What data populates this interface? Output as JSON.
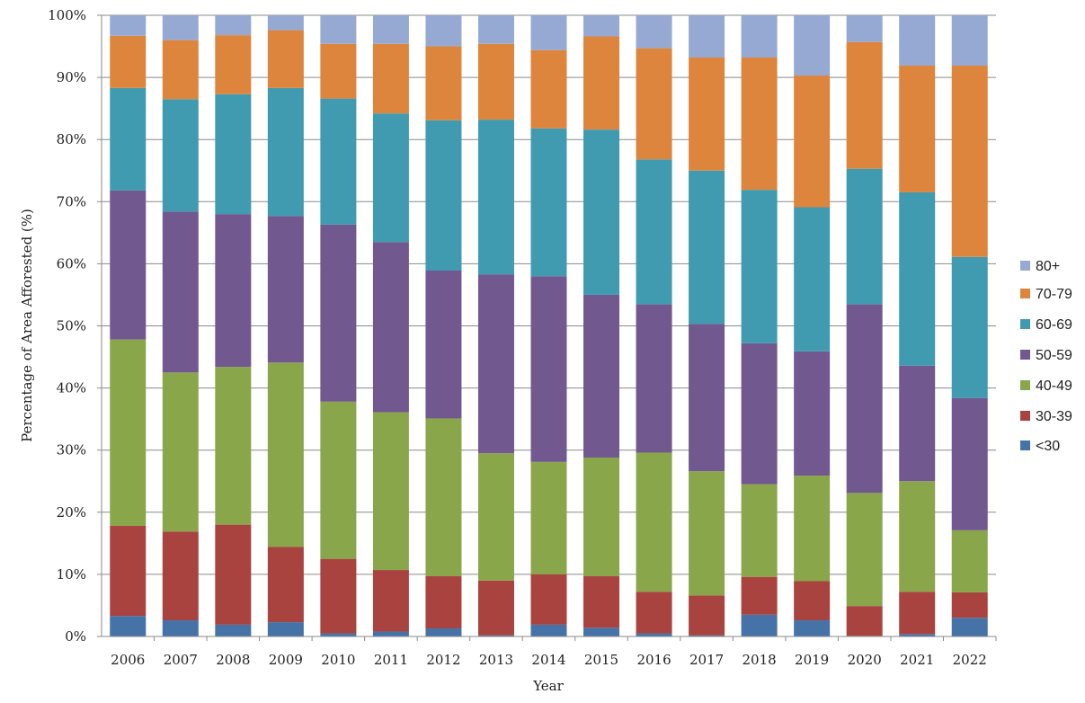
{
  "chart_data": {
    "type": "bar",
    "stacked": true,
    "title": "",
    "xlabel": "Year",
    "ylabel": "Percentage of Area Afforested (%)",
    "ylim": [
      0,
      100
    ],
    "yticks": [
      "0%",
      "10%",
      "20%",
      "30%",
      "40%",
      "50%",
      "60%",
      "70%",
      "80%",
      "90%",
      "100%"
    ],
    "grid": true,
    "legend_position": "right",
    "categories": [
      "2006",
      "2007",
      "2008",
      "2009",
      "2010",
      "2011",
      "2012",
      "2013",
      "2014",
      "2015",
      "2016",
      "2017",
      "2018",
      "2019",
      "2020",
      "2021",
      "2022"
    ],
    "series": [
      {
        "name": "<30",
        "color": "#4573A7",
        "values": [
          3.3,
          2.6,
          1.9,
          2.3,
          0.5,
          0.8,
          1.3,
          0.2,
          1.9,
          1.4,
          0.5,
          0.2,
          3.5,
          2.6,
          0.1,
          0.4,
          3.0
        ]
      },
      {
        "name": "30-39",
        "color": "#A9433F",
        "values": [
          14.5,
          14.3,
          16.1,
          12.1,
          12.0,
          9.9,
          8.4,
          8.8,
          8.1,
          8.3,
          6.7,
          6.4,
          6.1,
          6.3,
          4.8,
          6.8,
          4.1
        ]
      },
      {
        "name": "40-49",
        "color": "#8AA64B",
        "values": [
          30.0,
          25.6,
          25.4,
          29.7,
          25.3,
          25.4,
          25.4,
          20.5,
          18.1,
          19.1,
          22.4,
          20.0,
          14.9,
          17.0,
          18.2,
          17.8,
          10.0
        ]
      },
      {
        "name": "50-59",
        "color": "#71588F",
        "values": [
          24.0,
          25.9,
          24.6,
          23.6,
          28.5,
          27.4,
          23.8,
          28.8,
          29.9,
          26.2,
          23.9,
          23.7,
          22.7,
          20.0,
          30.4,
          18.6,
          21.3
        ]
      },
      {
        "name": "60-69",
        "color": "#409BB0",
        "values": [
          16.5,
          18.1,
          19.3,
          20.6,
          20.3,
          20.7,
          24.2,
          24.9,
          23.8,
          26.6,
          23.3,
          24.7,
          24.7,
          23.2,
          21.8,
          27.9,
          22.7
        ]
      },
      {
        "name": "70-79",
        "color": "#DD853D",
        "values": [
          8.4,
          9.5,
          9.5,
          9.3,
          8.8,
          11.2,
          11.9,
          12.2,
          12.6,
          15.0,
          17.9,
          18.2,
          21.3,
          21.2,
          20.4,
          20.4,
          30.8
        ]
      },
      {
        "name": "80+",
        "color": "#95A9D3",
        "values": [
          3.3,
          4.0,
          3.2,
          2.4,
          4.6,
          4.6,
          5.0,
          4.6,
          5.6,
          3.4,
          5.3,
          6.8,
          6.8,
          9.7,
          4.3,
          8.1,
          8.1
        ]
      }
    ]
  }
}
